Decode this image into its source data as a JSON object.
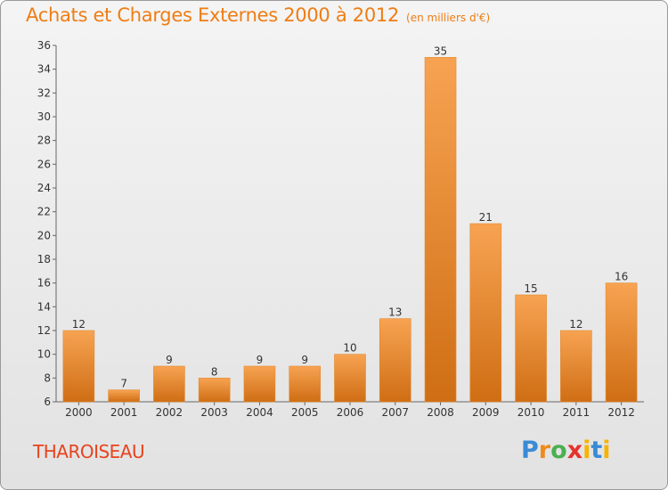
{
  "header": {
    "title": "Achats et Charges Externes 2000 à 2012",
    "subtitle": "(en milliers d'€)"
  },
  "footer": {
    "place": "THAROISEAU",
    "logo": "Proxiti"
  },
  "colors": {
    "bar_light": "#f7a352",
    "bar_dark": "#cf6e14",
    "accent": "#ef7d14"
  },
  "chart_data": {
    "type": "bar",
    "title": "Achats et Charges Externes 2000 à 2012",
    "subtitle": "(en milliers d'€)",
    "categories": [
      "2000",
      "2001",
      "2002",
      "2003",
      "2004",
      "2005",
      "2006",
      "2007",
      "2008",
      "2009",
      "2010",
      "2011",
      "2012"
    ],
    "values": [
      12,
      7,
      9,
      8,
      9,
      9,
      10,
      13,
      35,
      21,
      15,
      12,
      16
    ],
    "ylim": [
      6,
      36
    ],
    "yticks": [
      6,
      8,
      10,
      12,
      14,
      16,
      18,
      20,
      22,
      24,
      26,
      28,
      30,
      32,
      34,
      36
    ],
    "grid": false,
    "legend": "none"
  }
}
